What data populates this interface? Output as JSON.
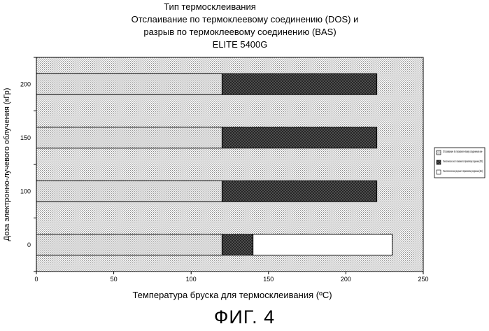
{
  "chart_data": {
    "type": "bar",
    "orientation": "horizontal",
    "stacked": true,
    "title_lines": [
      "Тип термосклеивания",
      "Отслаивание по термоклеевому соединению (DOS) и",
      "разрыв по термоклеевому соединению (BAS)",
      "ELITE 5400G"
    ],
    "xlabel": "Температура бруска для термосклеивания (ºC)",
    "ylabel": "Доза электронно-лучевого облучения (кГр)",
    "xlim": [
      0,
      250
    ],
    "xticks": [
      "0",
      "50",
      "100",
      "150",
      "200",
      "250"
    ],
    "categories": [
      "0",
      "100",
      "150",
      "200"
    ],
    "series": [
      {
        "name": "Отслаивание по термокле-евому соединению мн-",
        "pattern": "fine-dots",
        "spans": [
          [
            0,
            120
          ],
          [
            0,
            120
          ],
          [
            0,
            120
          ],
          [
            0,
            120
          ]
        ]
      },
      {
        "name": "Технологическое окно от-слаивания по термоклеевому соединению (DOS)",
        "pattern": "crosshatch",
        "spans": [
          [
            120,
            140
          ],
          [
            120,
            220
          ],
          [
            120,
            220
          ],
          [
            120,
            220
          ]
        ]
      },
      {
        "name": "Технологическое окно раз-рыва по термоклеевому соединению (BAS)",
        "pattern": "white",
        "spans": [
          [
            140,
            230
          ],
          null,
          null,
          null
        ]
      }
    ],
    "legend_position": "right",
    "grid": false
  },
  "figure_caption": "ФИГ. 4",
  "colors": {
    "background_pattern": "#bfbfbf",
    "axis": "#000000",
    "crosshatch": "#3a3a3a"
  }
}
